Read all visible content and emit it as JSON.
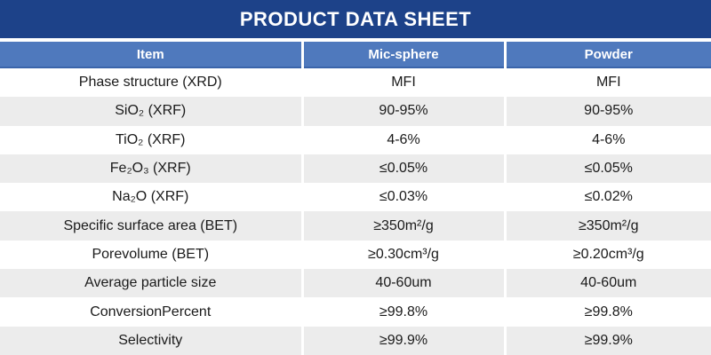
{
  "title": "PRODUCT DATA SHEET",
  "colors": {
    "title_bg": "#1d4289",
    "header_bg": "#4f79bd",
    "header_border": "#3a64aa",
    "row_alt_bg": "#ececec",
    "text_dark": "#1a1a1a"
  },
  "table": {
    "columns": {
      "item": "Item",
      "mic_sphere": "Mic-sphere",
      "powder": "Powder"
    },
    "rows": [
      {
        "item": "Phase structure (XRD)",
        "mic_sphere": "MFI",
        "powder": "MFI"
      },
      {
        "item": "SiO₂ (XRF)",
        "mic_sphere": "90-95%",
        "powder": "90-95%"
      },
      {
        "item": "TiO₂ (XRF)",
        "mic_sphere": "4-6%",
        "powder": "4-6%"
      },
      {
        "item": "Fe₂O₃ (XRF)",
        "mic_sphere": "≤0.05%",
        "powder": "≤0.05%"
      },
      {
        "item": "Na₂O (XRF)",
        "mic_sphere": "≤0.03%",
        "powder": "≤0.02%"
      },
      {
        "item": "Specific surface area (BET)",
        "mic_sphere": "≥350m²/g",
        "powder": "≥350m²/g"
      },
      {
        "item": "Porevolume (BET)",
        "mic_sphere": "≥0.30cm³/g",
        "powder": "≥0.20cm³/g"
      },
      {
        "item": "Average particle size",
        "mic_sphere": "40-60um",
        "powder": "40-60um"
      },
      {
        "item": "ConversionPercent",
        "mic_sphere": "≥99.8%",
        "powder": "≥99.8%"
      },
      {
        "item": "Selectivity",
        "mic_sphere": "≥99.9%",
        "powder": "≥99.9%"
      }
    ]
  }
}
